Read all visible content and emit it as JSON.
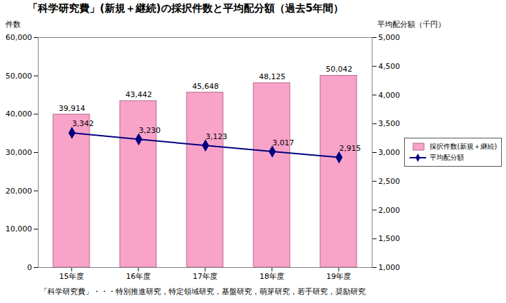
{
  "chart_data": {
    "type": "bar",
    "title": "「科学研究費」(新規＋継続)の採択件数と平均配分額（過去5年間）",
    "ylabel": "件数",
    "y2label": "平均配分額（千円）",
    "footnote": "「科学研究費」・・・特別推進研究，特定領域研究，基盤研究，萌芽研究，若手研究，奨励研究",
    "categories": [
      "15年度",
      "16年度",
      "17年度",
      "18年度",
      "19年度"
    ],
    "series": [
      {
        "name": "採択件数(新規＋継続)",
        "type": "bar",
        "color": "#f9a3c9",
        "values": [
          39914,
          43442,
          45648,
          48125,
          50042
        ],
        "value_labels": [
          "39,914",
          "43,442",
          "45,648",
          "48,125",
          "50,042"
        ]
      },
      {
        "name": "平均配分額",
        "type": "line",
        "axis": "y2",
        "color": "#000080",
        "marker": "diamond",
        "values": [
          3342,
          3230,
          3123,
          3017,
          2915
        ],
        "value_labels": [
          "3,342",
          "3,230",
          "3,123",
          "3,017",
          "2,915"
        ]
      }
    ],
    "ylim": [
      0,
      60000
    ],
    "yticks": [
      0,
      {
        "value": 10000,
        "label": "10,000"
      },
      {
        "value": 20000,
        "label": "20,000"
      },
      {
        "value": 30000,
        "label": "30,000"
      },
      {
        "value": 40000,
        "label": "40,000"
      },
      {
        "value": 50000,
        "label": "50,000"
      },
      {
        "value": 60000,
        "label": "60,000"
      }
    ],
    "y2lim": [
      1000,
      5000
    ],
    "y2ticks": [
      {
        "value": 1000,
        "label": "1,000"
      },
      {
        "value": 1500,
        "label": "1,500"
      },
      {
        "value": 2000,
        "label": "2,000"
      },
      {
        "value": 2500,
        "label": "2,500"
      },
      {
        "value": 3000,
        "label": "3,000"
      },
      {
        "value": 3500,
        "label": "3,500"
      },
      {
        "value": 4000,
        "label": "4,000"
      },
      {
        "value": 4500,
        "label": "4,500"
      },
      {
        "value": 5000,
        "label": "5,000"
      }
    ],
    "grid": false,
    "legend": "right",
    "data_labels": true
  }
}
